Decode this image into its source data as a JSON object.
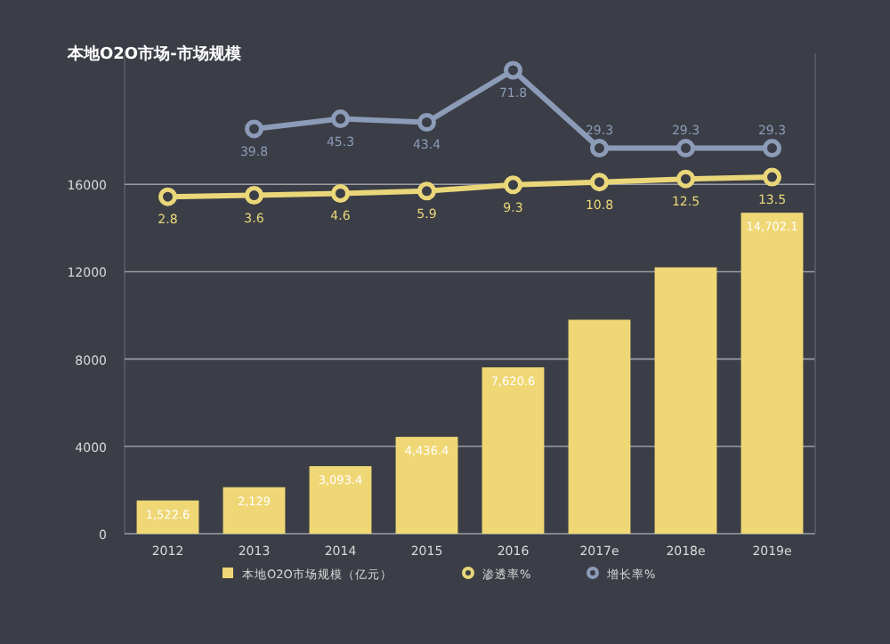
{
  "chart_data": {
    "type": "bar",
    "title": "本地O2O市场-市场规模",
    "categories": [
      "2012",
      "2013",
      "2014",
      "2015",
      "2016",
      "2017e",
      "2018e",
      "2019e"
    ],
    "series": [
      {
        "name": "本地O2O市场规模（亿元）",
        "color": "#efd775",
        "values": [
          1522.6,
          2129,
          3093.4,
          4436.4,
          7620.6,
          9800,
          12200,
          14702.1
        ],
        "value_labels": [
          "1,522.6",
          "2,129",
          "3,093.4",
          "4,436.4",
          "7,620.6",
          null,
          null,
          "14,702.1"
        ]
      },
      {
        "name": "渗透率%",
        "type": "line",
        "axis": "y2",
        "color": "#ead77a",
        "values": [
          2.8,
          3.6,
          4.6,
          5.9,
          9.3,
          10.8,
          12.5,
          13.5
        ],
        "value_labels": [
          "2.8",
          "3.6",
          "4.6",
          "5.9",
          "9.3",
          "10.8",
          "12.5",
          "13.5"
        ]
      },
      {
        "name": "增长率%",
        "type": "line",
        "axis": "y2",
        "color": "#8c9bb8",
        "values": [
          null,
          39.8,
          45.3,
          43.4,
          71.8,
          29.3,
          29.3,
          29.3
        ],
        "value_labels": [
          null,
          "39.8",
          "45.3",
          "43.4",
          "71.8",
          "29.3",
          "29.3",
          "29.3"
        ]
      }
    ],
    "ylim": [
      0,
      22000
    ],
    "yticks": [
      0,
      4000,
      8000,
      12000,
      16000
    ],
    "y2lim": [
      -181,
      81
    ],
    "grid": "y",
    "legend": "bottom",
    "marker": "circle"
  }
}
